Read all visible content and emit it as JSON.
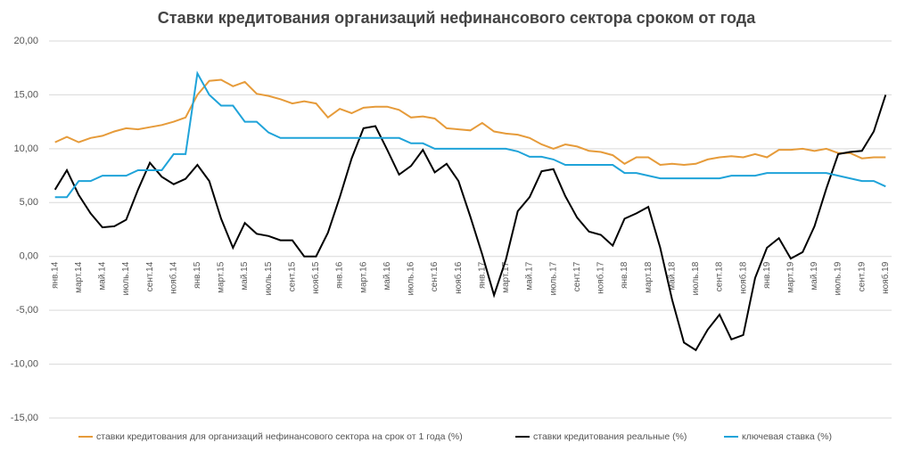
{
  "chart_data": {
    "type": "line",
    "title": "Ставки кредитования организаций нефинансового сектора сроком от года",
    "categories": [
      "янв.14",
      null,
      "март.14",
      null,
      "май.14",
      null,
      "июль.14",
      null,
      "сент.14",
      null,
      "нояб.14",
      null,
      "янв.15",
      null,
      "март.15",
      null,
      "май.15",
      null,
      "июль.15",
      null,
      "сент.15",
      null,
      "нояб.15",
      null,
      "янв.16",
      null,
      "март.16",
      null,
      "май.16",
      null,
      "июль.16",
      null,
      "сент.16",
      null,
      "нояб.16",
      null,
      "янв.17",
      null,
      "март.17",
      null,
      "май.17",
      null,
      "июль.17",
      null,
      "сент.17",
      null,
      "нояб.17",
      null,
      "янв.18",
      null,
      "март.18",
      null,
      "май.18",
      null,
      "июль.18",
      null,
      "сент.18",
      null,
      "нояб.18",
      null,
      "янв.19",
      null,
      "март.19",
      null,
      "май.19",
      null,
      "июль.19",
      null,
      "сент.19",
      null,
      "нояб.19"
    ],
    "series": [
      {
        "name": "ставки кредитования для организаций нефинансового сектора на срок от 1 года (%)",
        "color": "#e69b3a",
        "values": [
          10.6,
          11.1,
          10.6,
          11.0,
          11.2,
          11.6,
          11.9,
          11.8,
          12.0,
          12.2,
          12.5,
          12.9,
          15.0,
          16.3,
          16.4,
          15.8,
          16.2,
          15.1,
          14.9,
          14.6,
          14.2,
          14.4,
          14.2,
          12.9,
          13.7,
          13.3,
          13.8,
          13.9,
          13.9,
          13.6,
          12.9,
          13.0,
          12.8,
          11.9,
          11.8,
          11.7,
          12.4,
          11.6,
          11.4,
          11.3,
          11.0,
          10.4,
          10.0,
          10.4,
          10.2,
          9.8,
          9.7,
          9.4,
          8.6,
          9.2,
          9.2,
          8.5,
          8.6,
          8.5,
          8.6,
          9.0,
          9.2,
          9.3,
          9.2,
          9.5,
          9.2,
          9.9,
          9.9,
          10.0,
          9.8,
          10.0,
          9.6,
          9.6,
          9.1,
          9.2,
          9.2
        ]
      },
      {
        "name": "ставки кредитования реальные (%)",
        "color": "#000000",
        "values": [
          6.2,
          8.0,
          5.7,
          4.0,
          2.7,
          2.8,
          3.4,
          6.2,
          8.7,
          7.4,
          6.7,
          7.2,
          8.5,
          7.0,
          3.5,
          0.8,
          3.1,
          2.1,
          1.9,
          1.5,
          1.5,
          0.0,
          0.0,
          2.2,
          5.5,
          9.1,
          11.9,
          12.1,
          9.9,
          7.6,
          8.4,
          9.9,
          7.8,
          8.6,
          7.0,
          3.7,
          0.2,
          -3.6,
          -0.3,
          4.2,
          5.5,
          7.9,
          8.1,
          5.6,
          3.6,
          2.3,
          2.0,
          1.0,
          3.5,
          4.0,
          4.6,
          0.8,
          -4.0,
          -8.0,
          -8.7,
          -6.8,
          -5.4,
          -7.7,
          -7.3,
          -2.0,
          0.8,
          1.7,
          -0.2,
          0.4,
          2.8,
          6.3,
          9.5,
          9.7,
          9.8,
          11.6,
          15.0
        ]
      },
      {
        "name": "ключевая ставка (%)",
        "color": "#1fa3d9",
        "values": [
          5.5,
          5.5,
          7.0,
          7.0,
          7.5,
          7.5,
          7.5,
          8.0,
          8.0,
          8.0,
          9.5,
          9.5,
          17.0,
          15.0,
          14.0,
          14.0,
          12.5,
          12.5,
          11.5,
          11.0,
          11.0,
          11.0,
          11.0,
          11.0,
          11.0,
          11.0,
          11.0,
          11.0,
          11.0,
          11.0,
          10.5,
          10.5,
          10.0,
          10.0,
          10.0,
          10.0,
          10.0,
          10.0,
          10.0,
          9.75,
          9.25,
          9.25,
          9.0,
          8.5,
          8.5,
          8.5,
          8.5,
          8.5,
          7.75,
          7.75,
          7.5,
          7.25,
          7.25,
          7.25,
          7.25,
          7.25,
          7.25,
          7.5,
          7.5,
          7.5,
          7.75,
          7.75,
          7.75,
          7.75,
          7.75,
          7.75,
          7.5,
          7.25,
          7.0,
          7.0,
          6.5
        ]
      }
    ],
    "ylim": [
      -15,
      20
    ],
    "yticks": [
      {
        "value": -15,
        "label": "-15,00"
      },
      {
        "value": -10,
        "label": "-10,00"
      },
      {
        "value": -5,
        "label": "-5,00"
      },
      {
        "value": 0,
        "label": "0,00"
      },
      {
        "value": 5,
        "label": "5,00"
      },
      {
        "value": 10,
        "label": "10,00"
      },
      {
        "value": 15,
        "label": "15,00"
      },
      {
        "value": 20,
        "label": "20,00"
      }
    ],
    "grid": true,
    "legend": "bottom"
  }
}
